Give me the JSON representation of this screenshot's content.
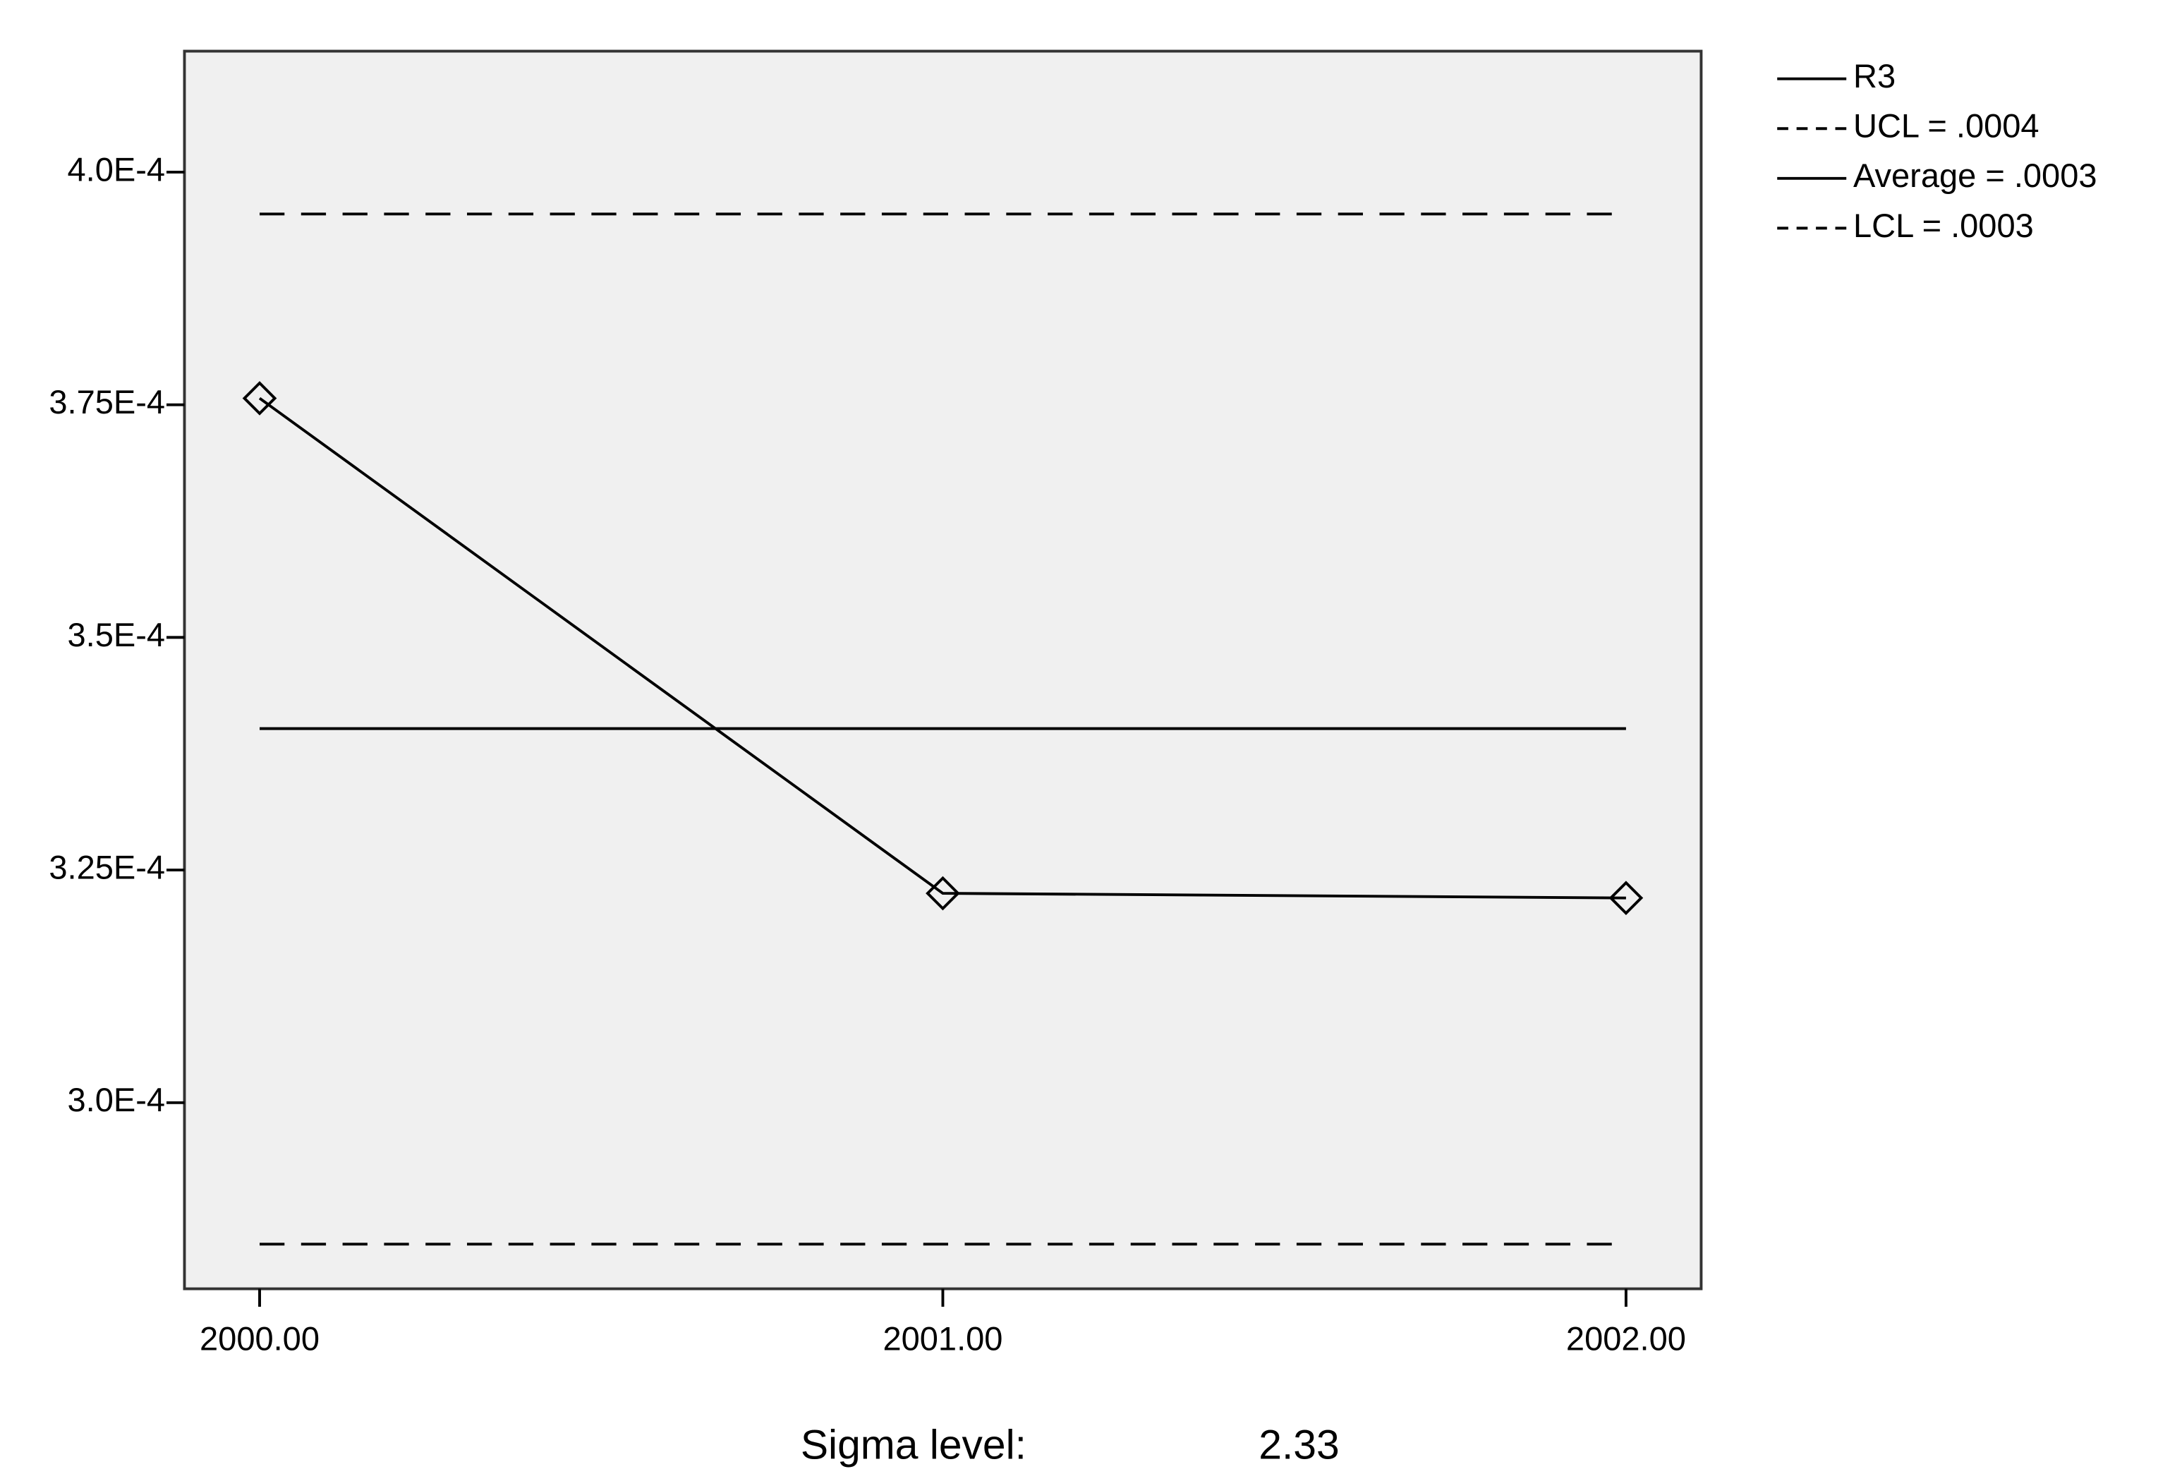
{
  "chart_data": {
    "type": "line",
    "x": [
      2000,
      2001,
      2002
    ],
    "xlim": [
      1999.89,
      2002.11
    ],
    "xticks": [
      {
        "value": 2000,
        "label": "2000.00"
      },
      {
        "value": 2001,
        "label": "2001.00"
      },
      {
        "value": 2002,
        "label": "2002.00"
      }
    ],
    "ylim": [
      0.00028,
      0.000413
    ],
    "yticks": [
      {
        "value": 0.0003,
        "label": "3.0E-4"
      },
      {
        "value": 0.000325,
        "label": "3.25E-4"
      },
      {
        "value": 0.00035,
        "label": "3.5E-4"
      },
      {
        "value": 0.000375,
        "label": "3.75E-4"
      },
      {
        "value": 0.0004,
        "label": "4.0E-4"
      }
    ],
    "series": [
      {
        "name": "R3",
        "color": "#000000",
        "style": "solid",
        "marker": "diamond",
        "values": [
          0.0003757,
          0.0003225,
          0.000322
        ]
      },
      {
        "name": "UCL = .0004",
        "color": "#000000",
        "style": "dashed",
        "values": [
          0.0003955,
          0.0003955,
          0.0003955
        ]
      },
      {
        "name": "Average = .0003",
        "color": "#000000",
        "style": "solid",
        "values": [
          0.0003402,
          0.0003402,
          0.0003402
        ]
      },
      {
        "name": "LCL = .0003",
        "color": "#000000",
        "style": "dashed",
        "values": [
          0.0002848,
          0.0002848,
          0.0002848
        ]
      }
    ],
    "legend": "right",
    "footer_label": "Sigma level:",
    "footer_value": 2.33
  }
}
